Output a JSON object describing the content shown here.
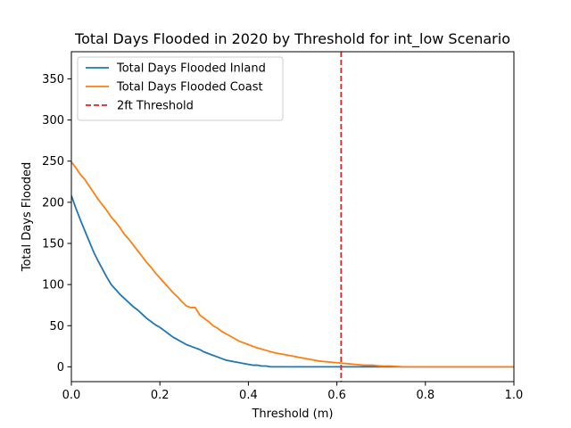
{
  "chart_data": {
    "type": "line",
    "title": "Total Days Flooded in 2020 by Threshold for int_low Scenario",
    "xlabel": "Threshold (m)",
    "ylabel": "Total Days Flooded",
    "xlim": [
      0,
      1.0
    ],
    "ylim": [
      -18,
      383
    ],
    "x_ticks": [
      0.0,
      0.2,
      0.4,
      0.6,
      0.8,
      1.0
    ],
    "x_tick_labels": [
      "0.0",
      "0.2",
      "0.4",
      "0.6",
      "0.8",
      "1.0"
    ],
    "y_ticks": [
      0,
      50,
      100,
      150,
      200,
      250,
      300,
      350
    ],
    "y_tick_labels": [
      "0",
      "50",
      "100",
      "150",
      "200",
      "250",
      "300",
      "350"
    ],
    "grid": false,
    "legend_position": "top-left",
    "series": [
      {
        "name": "Total Days Flooded Inland",
        "color": "#1f77b4",
        "style": "solid",
        "x": [
          0,
          0.01,
          0.02,
          0.03,
          0.04,
          0.05,
          0.06,
          0.07,
          0.08,
          0.09,
          0.1,
          0.11,
          0.12,
          0.13,
          0.14,
          0.15,
          0.16,
          0.17,
          0.18,
          0.19,
          0.2,
          0.21,
          0.22,
          0.23,
          0.24,
          0.25,
          0.26,
          0.27,
          0.28,
          0.29,
          0.3,
          0.31,
          0.32,
          0.33,
          0.34,
          0.35,
          0.36,
          0.37,
          0.38,
          0.39,
          0.4,
          0.41,
          0.42,
          0.43,
          0.44,
          0.45,
          0.5,
          0.6,
          0.7,
          0.8,
          0.9,
          1.0
        ],
        "y": [
          208,
          193,
          179,
          166,
          153,
          140,
          129,
          119,
          109,
          100,
          94,
          88,
          83,
          78,
          73,
          69,
          64,
          59,
          55,
          51,
          48,
          44,
          40,
          36,
          33,
          30,
          27,
          25,
          23,
          21,
          18,
          16,
          14,
          12,
          10,
          8,
          7,
          6,
          5,
          4,
          3,
          2,
          2,
          1,
          1,
          0,
          0,
          0,
          0,
          0,
          0,
          0
        ]
      },
      {
        "name": "Total Days Flooded Coast",
        "color": "#ff7f0e",
        "style": "solid",
        "x": [
          0,
          0.01,
          0.02,
          0.03,
          0.04,
          0.05,
          0.06,
          0.07,
          0.08,
          0.09,
          0.1,
          0.11,
          0.12,
          0.13,
          0.14,
          0.15,
          0.16,
          0.17,
          0.18,
          0.19,
          0.2,
          0.21,
          0.22,
          0.23,
          0.24,
          0.25,
          0.26,
          0.27,
          0.28,
          0.29,
          0.3,
          0.31,
          0.32,
          0.33,
          0.34,
          0.35,
          0.36,
          0.37,
          0.38,
          0.39,
          0.4,
          0.42,
          0.44,
          0.46,
          0.48,
          0.5,
          0.52,
          0.54,
          0.56,
          0.58,
          0.6,
          0.62,
          0.64,
          0.66,
          0.68,
          0.7,
          0.72,
          0.75,
          0.8,
          0.9,
          1.0
        ],
        "y": [
          249,
          242,
          234,
          228,
          220,
          212,
          204,
          197,
          190,
          182,
          176,
          169,
          161,
          155,
          148,
          141,
          134,
          127,
          121,
          114,
          108,
          102,
          96,
          90,
          85,
          79,
          74,
          72,
          72,
          63,
          59,
          55,
          50,
          47,
          43,
          40,
          37,
          34,
          31,
          29,
          27,
          23,
          20,
          17,
          15,
          13,
          11,
          9,
          7,
          6,
          5,
          4,
          3,
          2,
          2,
          1,
          1,
          0,
          0,
          0,
          0
        ]
      },
      {
        "name": "2ft Threshold",
        "color": "#d62728",
        "style": "dashed",
        "vertical_line_x": 0.6096
      }
    ]
  }
}
